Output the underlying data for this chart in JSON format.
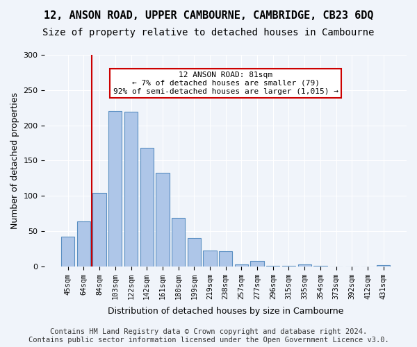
{
  "title_line1": "12, ANSON ROAD, UPPER CAMBOURNE, CAMBRIDGE, CB23 6DQ",
  "title_line2": "Size of property relative to detached houses in Cambourne",
  "xlabel": "Distribution of detached houses by size in Cambourne",
  "ylabel": "Number of detached properties",
  "categories": [
    "45sqm",
    "64sqm",
    "84sqm",
    "103sqm",
    "122sqm",
    "142sqm",
    "161sqm",
    "180sqm",
    "199sqm",
    "219sqm",
    "238sqm",
    "257sqm",
    "277sqm",
    "296sqm",
    "315sqm",
    "335sqm",
    "354sqm",
    "373sqm",
    "392sqm",
    "412sqm",
    "431sqm"
  ],
  "values": [
    42,
    64,
    104,
    220,
    219,
    168,
    133,
    69,
    40,
    22,
    21,
    3,
    8,
    1,
    1,
    3,
    1,
    0,
    0,
    0,
    2
  ],
  "bar_color": "#aec6e8",
  "bar_edge_color": "#5a8fc2",
  "vline_x": 1,
  "vline_color": "#cc0000",
  "annotation_text": "12 ANSON ROAD: 81sqm\n← 7% of detached houses are smaller (79)\n92% of semi-detached houses are larger (1,015) →",
  "annotation_box_color": "#ffffff",
  "annotation_box_edge": "#cc0000",
  "ylim": [
    0,
    300
  ],
  "yticks": [
    0,
    50,
    100,
    150,
    200,
    250,
    300
  ],
  "background_color": "#f0f4fa",
  "footer": "Contains HM Land Registry data © Crown copyright and database right 2024.\nContains public sector information licensed under the Open Government Licence v3.0.",
  "title_fontsize": 11,
  "subtitle_fontsize": 10,
  "footer_fontsize": 7.5
}
